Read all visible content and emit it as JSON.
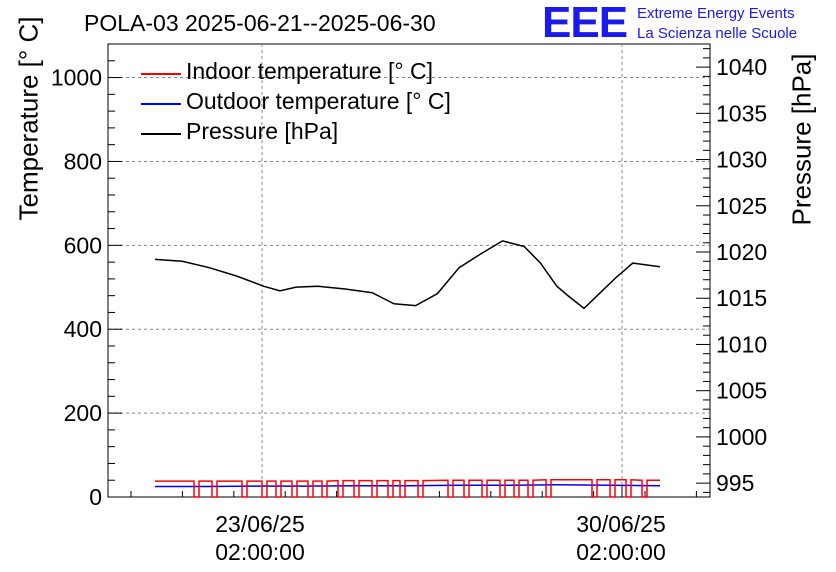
{
  "title": "POLA-03 2025-06-21--2025-06-30",
  "logo": {
    "letters": "EEE",
    "line1": "Extreme Energy Events",
    "line2": "La Scienza nelle Scuole"
  },
  "chart_data": {
    "type": "line",
    "title": "POLA-03 2025-06-21--2025-06-30",
    "ylabel_left": "Temperature [° C]",
    "ylabel_right": "Pressure [hPa]",
    "ylim_left": [
      0,
      1080
    ],
    "ylim_right": [
      993.5,
      1042.5
    ],
    "yticks_left": [
      "0",
      "200",
      "400",
      "600",
      "800",
      "1000"
    ],
    "yticks_right": [
      "995",
      "1000",
      "1005",
      "1010",
      "1015",
      "1020",
      "1025",
      "1030",
      "1035",
      "1040"
    ],
    "xticks": [
      {
        "date": "23/06/25",
        "time": "02:00:00"
      },
      {
        "date": "30/06/25",
        "time": "02:00:00"
      }
    ],
    "grid": true,
    "legend_position": "top-left",
    "series": [
      {
        "name": "Indoor temperature [° C]",
        "color": "#ff0000",
        "axis": "left",
        "description_values": [
          38,
          38,
          38,
          38,
          39,
          39,
          40,
          40,
          41,
          41,
          40
        ],
        "drops_to": 0
      },
      {
        "name": "Outdoor temperature [° C]",
        "color": "#0000ff",
        "axis": "left",
        "description_values": [
          25,
          25,
          26,
          26,
          27,
          27,
          28,
          28,
          29,
          28,
          27
        ]
      },
      {
        "name": "Pressure [hPa]",
        "color": "#000000",
        "axis": "right",
        "x_days": [
          0.0,
          0.5,
          1.0,
          1.5,
          2.0,
          2.3,
          2.6,
          3.0,
          3.5,
          4.0,
          4.4,
          4.8,
          5.2,
          5.6,
          6.0,
          6.4,
          6.8,
          7.1,
          7.4,
          7.6,
          7.9,
          8.2,
          8.5,
          8.8,
          9.3
        ],
        "values": [
          1019.2,
          1019.0,
          1018.3,
          1017.4,
          1016.3,
          1015.8,
          1016.2,
          1016.3,
          1016.0,
          1015.6,
          1014.4,
          1014.2,
          1015.5,
          1018.3,
          1019.8,
          1021.2,
          1020.6,
          1018.8,
          1016.3,
          1015.3,
          1013.9,
          1015.6,
          1017.3,
          1018.8,
          1018.4
        ]
      }
    ]
  }
}
